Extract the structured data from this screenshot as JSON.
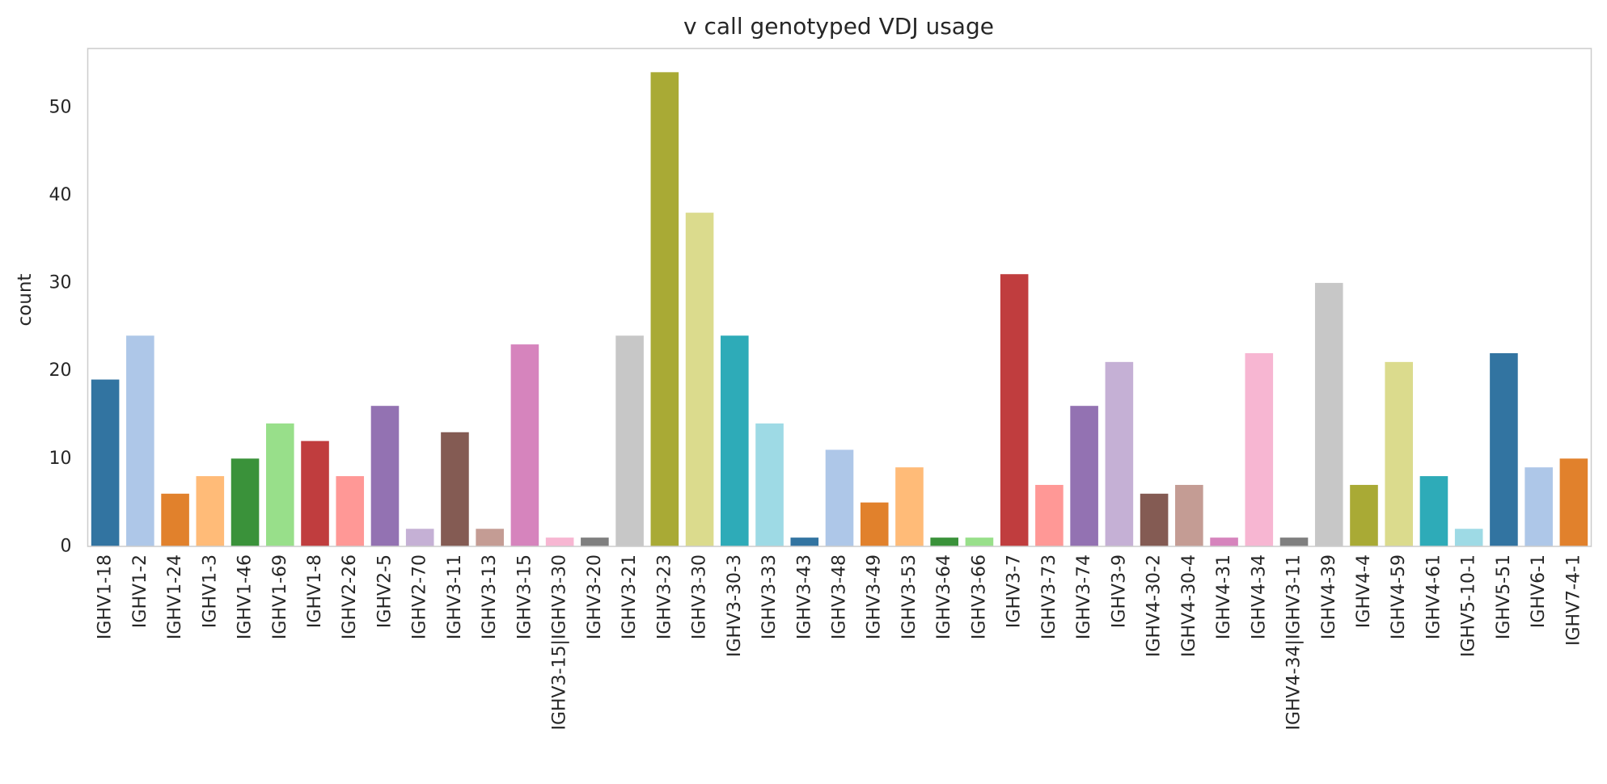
{
  "chart_data": {
    "type": "bar",
    "title": "v call genotyped VDJ usage",
    "xlabel": "",
    "ylabel": "count",
    "ylim": [
      0,
      56.7
    ],
    "yticks": [
      0,
      10,
      20,
      30,
      40,
      50
    ],
    "grid": false,
    "categories": [
      "IGHV1-18",
      "IGHV1-2",
      "IGHV1-24",
      "IGHV1-3",
      "IGHV1-46",
      "IGHV1-69",
      "IGHV1-8",
      "IGHV2-26",
      "IGHV2-5",
      "IGHV2-70",
      "IGHV3-11",
      "IGHV3-13",
      "IGHV3-15",
      "IGHV3-15|IGHV3-30",
      "IGHV3-20",
      "IGHV3-21",
      "IGHV3-23",
      "IGHV3-30",
      "IGHV3-30-3",
      "IGHV3-33",
      "IGHV3-43",
      "IGHV3-48",
      "IGHV3-49",
      "IGHV3-53",
      "IGHV3-64",
      "IGHV3-66",
      "IGHV3-7",
      "IGHV3-73",
      "IGHV3-74",
      "IGHV3-9",
      "IGHV4-30-2",
      "IGHV4-30-4",
      "IGHV4-31",
      "IGHV4-34",
      "IGHV4-34|IGHV3-11",
      "IGHV4-39",
      "IGHV4-4",
      "IGHV4-59",
      "IGHV4-61",
      "IGHV5-10-1",
      "IGHV5-51",
      "IGHV6-1",
      "IGHV7-4-1"
    ],
    "values": [
      19,
      24,
      6,
      8,
      10,
      14,
      12,
      8,
      16,
      2,
      13,
      2,
      23,
      1,
      1,
      24,
      54,
      38,
      24,
      14,
      1,
      11,
      5,
      9,
      1,
      1,
      31,
      7,
      16,
      21,
      6,
      7,
      1,
      22,
      1,
      30,
      7,
      21,
      8,
      2,
      22,
      9,
      10
    ],
    "colors": [
      "#3274a1",
      "#aec7e8",
      "#e1812c",
      "#ffbb78",
      "#3a923a",
      "#98df8a",
      "#c03d3e",
      "#ff9896",
      "#9372b2",
      "#c5b0d5",
      "#845b53",
      "#c49c94",
      "#d684bd",
      "#f7b6d2",
      "#7f7f7f",
      "#c7c7c7",
      "#a9aa35",
      "#dbdb8d",
      "#2eabb8",
      "#9edae5"
    ]
  }
}
